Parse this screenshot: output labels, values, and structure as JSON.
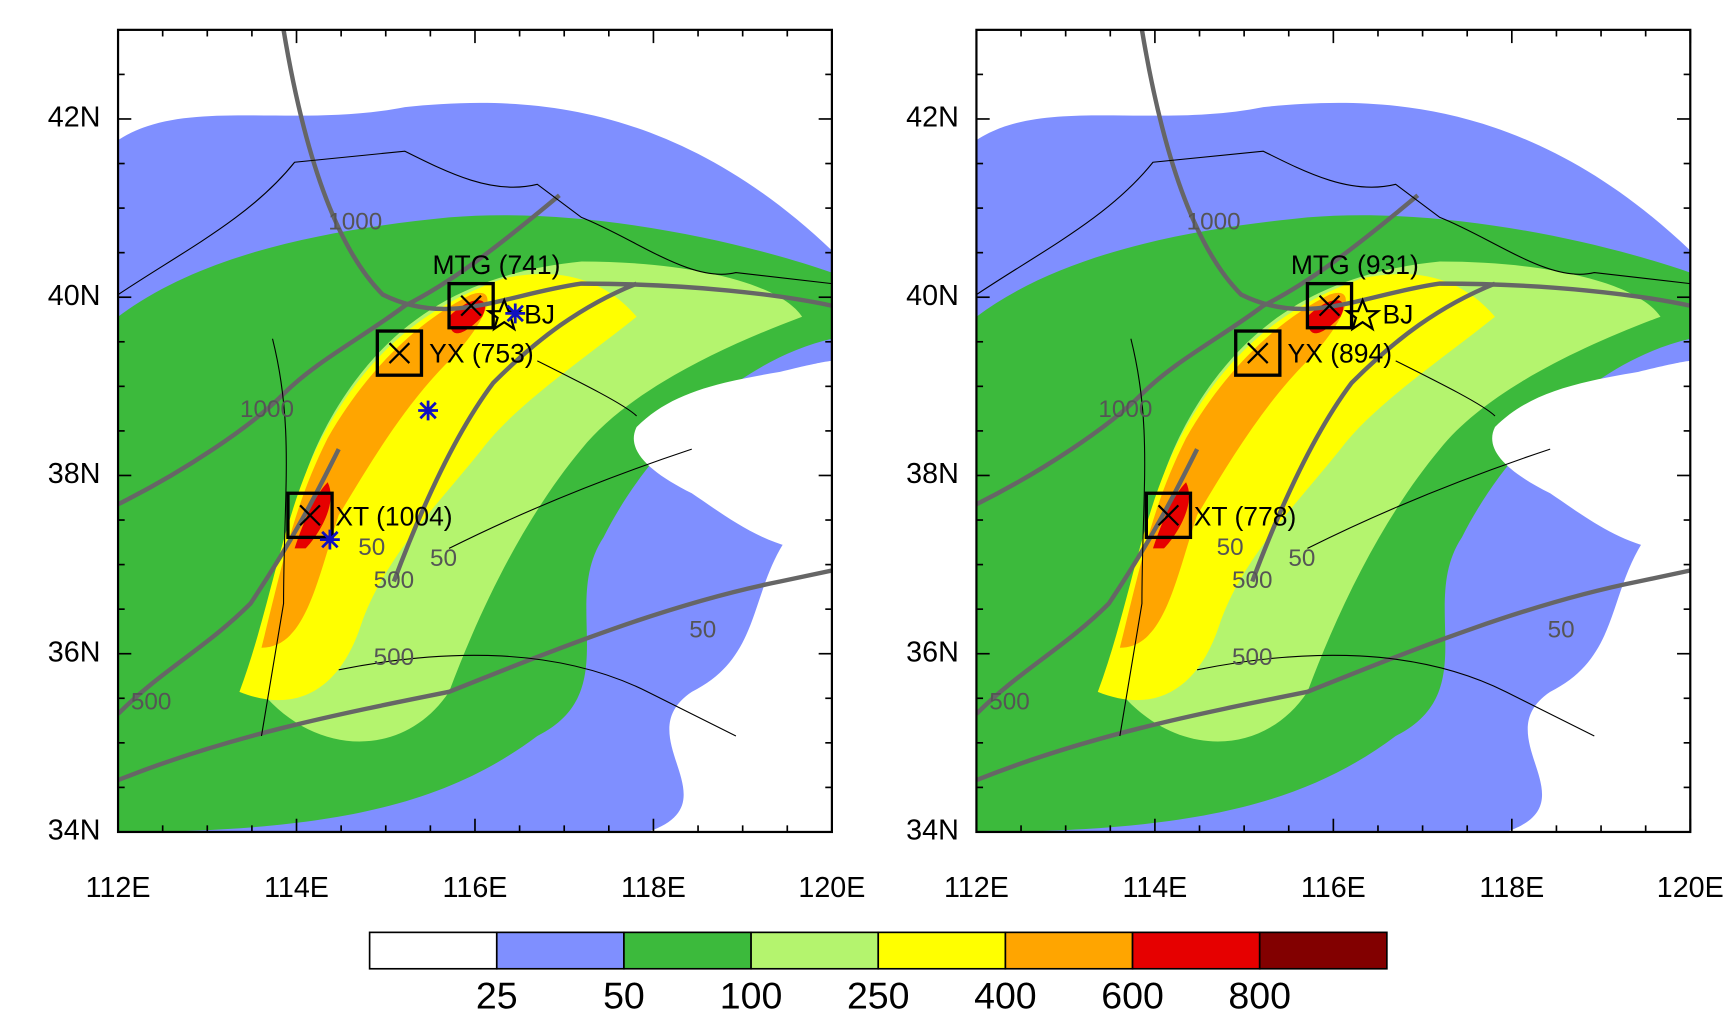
{
  "panels": [
    {
      "xticks": [
        "112E",
        "114E",
        "116E",
        "118E",
        "120E"
      ],
      "yticks": [
        "34N",
        "36N",
        "38N",
        "40N",
        "42N"
      ],
      "stations": [
        {
          "label": "MTG (741)"
        },
        {
          "label": "YX (753)"
        },
        {
          "label": "XT (1004)"
        }
      ],
      "city": "BJ",
      "contour_labels": [
        "1000",
        "1000",
        "500",
        "50",
        "50",
        "500",
        "500",
        "50"
      ]
    },
    {
      "xticks": [
        "112E",
        "114E",
        "116E",
        "118E",
        "120E"
      ],
      "yticks": [
        "34N",
        "36N",
        "38N",
        "40N",
        "42N"
      ],
      "stations": [
        {
          "label": "MTG (931)"
        },
        {
          "label": "YX (894)"
        },
        {
          "label": "XT (778)"
        }
      ],
      "city": "BJ",
      "contour_labels": [
        "1000",
        "1000",
        "500",
        "50",
        "50",
        "500",
        "500",
        "50"
      ]
    }
  ],
  "colorbar": {
    "colors": [
      "#ffffff",
      "#7f8fff",
      "#3cba3c",
      "#b4f46e",
      "#ffff00",
      "#ffa500",
      "#e60000",
      "#820000"
    ],
    "labels": [
      "25",
      "50",
      "100",
      "250",
      "400",
      "600",
      "800"
    ]
  }
}
